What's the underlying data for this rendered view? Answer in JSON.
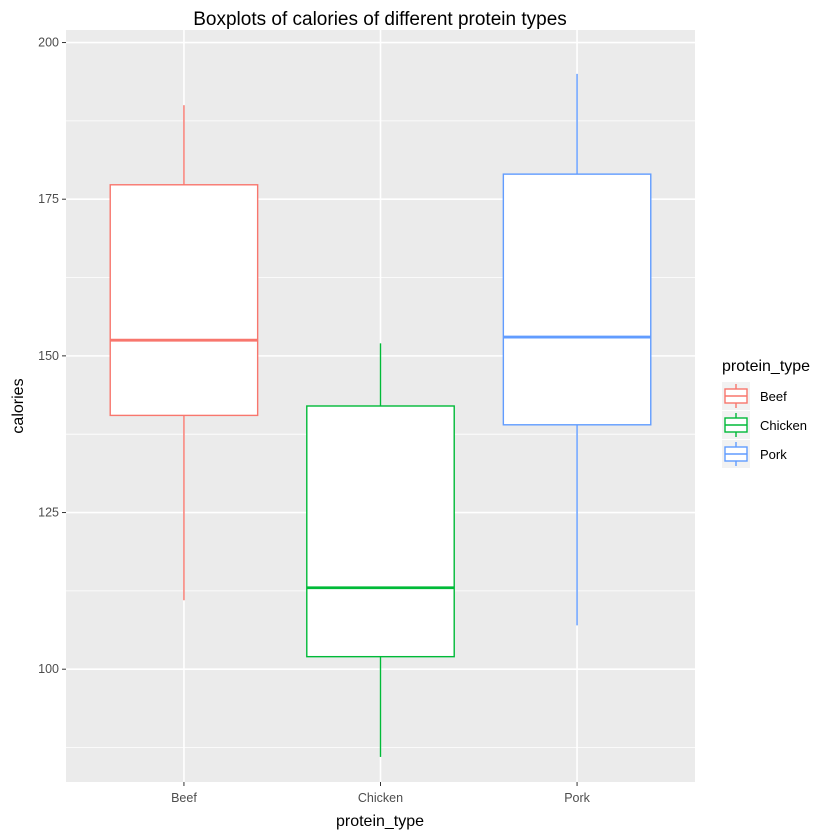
{
  "chart_data": {
    "type": "boxplot",
    "title": "Boxplots of calories of different protein types",
    "xlabel": "protein_type",
    "ylabel": "calories",
    "ylim": [
      82,
      202
    ],
    "yticks": [
      100,
      125,
      150,
      175,
      200
    ],
    "grid": true,
    "legend": {
      "title": "protein_type",
      "placement": "right"
    },
    "categories": [
      "Beef",
      "Chicken",
      "Pork"
    ],
    "series": [
      {
        "name": "Beef",
        "color": "#F8766D",
        "min": 111,
        "q1": 140.5,
        "median": 152.5,
        "q3": 177.3,
        "max": 190
      },
      {
        "name": "Chicken",
        "color": "#00BA38",
        "min": 86,
        "q1": 102,
        "median": 113,
        "q3": 142,
        "max": 152
      },
      {
        "name": "Pork",
        "color": "#619CFF",
        "min": 107,
        "q1": 139,
        "median": 153,
        "q3": 179,
        "max": 195
      }
    ]
  }
}
